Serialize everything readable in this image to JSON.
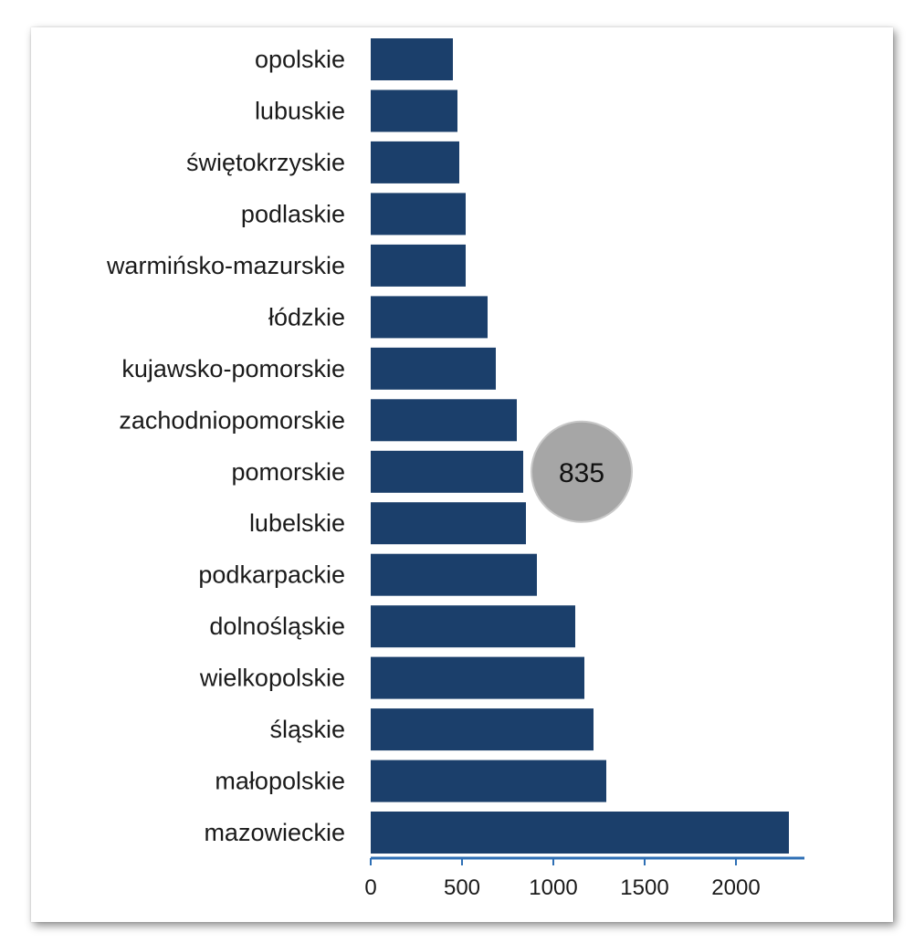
{
  "colors": {
    "bar": "#1b3f6b",
    "axis": "#2e6fb5",
    "callout_fill": "#a6a6a6",
    "callout_stroke": "#c8c8c8"
  },
  "chart_data": {
    "type": "bar",
    "orientation": "horizontal",
    "title": "",
    "xlabel": "",
    "ylabel": "",
    "categories": [
      "opolskie",
      "lubuskie",
      "świętokrzyskie",
      "podlaskie",
      "warmińsko-mazurskie",
      "łódzkie",
      "kujawsko-pomorskie",
      "zachodniopomorskie",
      "pomorskie",
      "lubelskie",
      "podkarpackie",
      "dolnośląskie",
      "wielkopolskie",
      "śląskie",
      "małopolskie",
      "mazowieckie"
    ],
    "values": [
      450,
      475,
      485,
      520,
      520,
      640,
      685,
      800,
      835,
      850,
      910,
      1120,
      1170,
      1220,
      1290,
      2290
    ],
    "xlim": [
      0,
      2400
    ],
    "xticks": [
      "0",
      "500",
      "1000",
      "1500",
      "2000"
    ],
    "xtick_values": [
      0,
      500,
      1000,
      1500,
      2000
    ],
    "grid": false,
    "legend": "none",
    "callout": {
      "category": "pomorskie",
      "text": "835"
    }
  }
}
